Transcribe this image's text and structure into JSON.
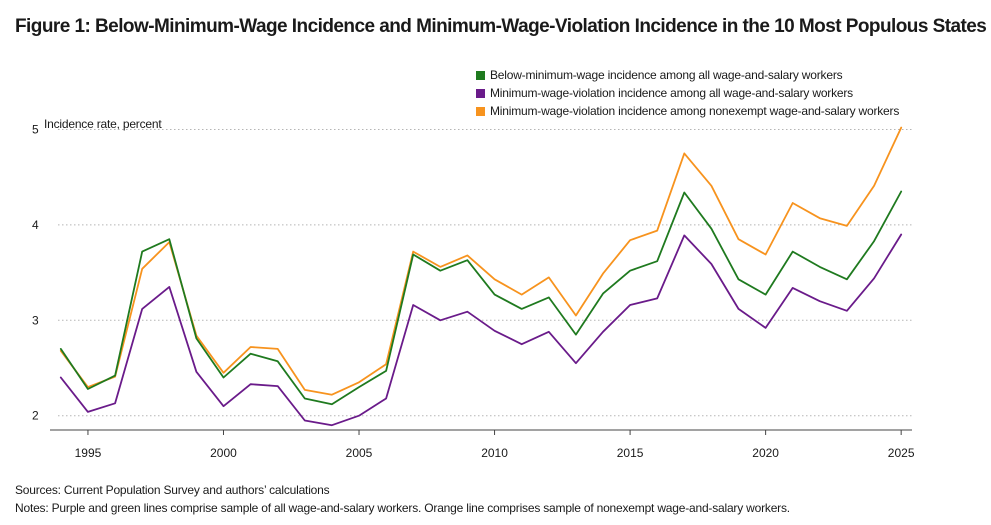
{
  "chart_data": {
    "type": "line",
    "title": "Figure 1: Below-Minimum-Wage Incidence and Minimum-Wage-Violation Incidence in the 10 Most Populous States",
    "ylabel": "Incidence rate, percent",
    "xlabel": "",
    "x": [
      1994,
      1995,
      1996,
      1997,
      1998,
      1999,
      2000,
      2001,
      2002,
      2003,
      2004,
      2005,
      2006,
      2007,
      2008,
      2009,
      2010,
      2011,
      2012,
      2013,
      2014,
      2015,
      2016,
      2017,
      2018,
      2019,
      2020,
      2021,
      2022,
      2023,
      2024,
      2025
    ],
    "xticks": [
      "1995",
      "2000",
      "2005",
      "2010",
      "2015",
      "2020",
      "2025"
    ],
    "xtick_values": [
      1995,
      2000,
      2005,
      2010,
      2015,
      2020,
      2025
    ],
    "yticks": [
      "2",
      "3",
      "4",
      "5"
    ],
    "ytick_values": [
      2,
      3,
      4,
      5
    ],
    "xlim": [
      1993.6,
      2025.4
    ],
    "ylim": [
      1.85,
      5.1
    ],
    "grid": "horizontal dotted",
    "legend_position": "top-right",
    "series": [
      {
        "name": "Below-minimum-wage incidence among all wage-and-salary workers",
        "color": "#1f7a1f",
        "values": [
          2.7,
          2.28,
          2.42,
          3.72,
          3.85,
          2.81,
          2.4,
          2.65,
          2.57,
          2.18,
          2.12,
          2.3,
          2.47,
          3.69,
          3.52,
          3.63,
          3.27,
          3.12,
          3.24,
          2.85,
          3.28,
          3.52,
          3.62,
          4.34,
          3.96,
          3.43,
          3.27,
          3.72,
          3.56,
          3.43,
          3.83,
          4.35
        ]
      },
      {
        "name": "Minimum-wage-violation incidence among all wage-and-salary workers",
        "color": "#6a1b8a",
        "values": [
          2.4,
          2.04,
          2.13,
          3.12,
          3.35,
          2.46,
          2.1,
          2.33,
          2.31,
          1.95,
          1.9,
          2.0,
          2.18,
          3.16,
          3.0,
          3.09,
          2.89,
          2.75,
          2.88,
          2.55,
          2.88,
          3.16,
          3.23,
          3.89,
          3.59,
          3.12,
          2.92,
          3.34,
          3.2,
          3.1,
          3.44,
          3.9
        ]
      },
      {
        "name": "Minimum-wage-violation incidence among nonexempt wage-and-salary workers",
        "color": "#f7931e",
        "values": [
          2.68,
          2.3,
          2.41,
          3.54,
          3.82,
          2.84,
          2.45,
          2.72,
          2.7,
          2.27,
          2.22,
          2.35,
          2.54,
          3.72,
          3.56,
          3.68,
          3.43,
          3.27,
          3.45,
          3.05,
          3.49,
          3.84,
          3.94,
          4.75,
          4.41,
          3.85,
          3.69,
          4.23,
          4.07,
          3.99,
          4.41,
          5.02
        ]
      }
    ]
  },
  "footer": {
    "sources": "Sources: Current Population Survey and authors’ calculations",
    "notes": "Notes: Purple and green lines comprise sample of all wage-and-salary workers. Orange line comprises sample of nonexempt wage-and-salary workers."
  }
}
